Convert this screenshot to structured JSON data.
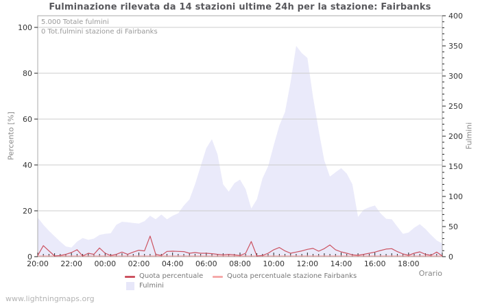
{
  "title": "Fulminazione rilevata da 14 stazioni ultime 24h per la stazione: Fairbanks",
  "annotations": {
    "total": "5.000 Totale fulmini",
    "station_total": "0 Tot.fulmini stazione di Fairbanks"
  },
  "watermark": "www.lightningmaps.org",
  "axes": {
    "left_title": "Percento  [%]",
    "right_title": "Fulmini",
    "x_title": "Orario",
    "left_ticks": [
      0,
      20,
      40,
      60,
      80,
      100
    ],
    "right_ticks": [
      0,
      50,
      100,
      150,
      200,
      250,
      300,
      350,
      400
    ],
    "x_ticks": [
      "20:00",
      "22:00",
      "00:00",
      "02:00",
      "04:00",
      "06:00",
      "08:00",
      "10:00",
      "12:00",
      "14:00",
      "16:00",
      "18:00"
    ],
    "left_range": [
      0,
      100
    ],
    "right_range": [
      0,
      400
    ],
    "grid": "horizontal"
  },
  "legend": [
    {
      "label": "Quota percentuale",
      "type": "line",
      "color": "#cc5260"
    },
    {
      "label": "Quota percentuale stazione Fairbanks",
      "type": "line",
      "color": "#f5a9a9"
    },
    {
      "label": "Fulmini",
      "type": "area",
      "color": "#e7e7f9"
    }
  ],
  "colors": {
    "area_fill": "#eaeafa",
    "line_percent": "#cc5260",
    "line_station": "#f5a9a9",
    "grid": "#cccccc",
    "frame": "#aaaaaa",
    "tick": "#222222",
    "tick_text": "#333333",
    "title_text": "#58585c",
    "axis_title_text": "#888888",
    "annotation_text": "#999999",
    "watermark_text": "#b3b3b3",
    "legend_text": "#777777"
  },
  "chart_data": {
    "type": "area",
    "title": "Fulminazione rilevata da 14 stazioni ultime 24h per la stazione: Fairbanks",
    "xlabel": "Orario",
    "ylabel_left": "Percento  [%]",
    "ylabel_right": "Fulmini",
    "x_start": "20:00",
    "hours_span": 24,
    "interval_minutes": 20,
    "ylim_left": [
      0,
      100
    ],
    "ylim_right": [
      0,
      400
    ],
    "series": [
      {
        "name": "Fulmini",
        "type": "area",
        "axis": "right",
        "color": "#eaeafa",
        "values": [
          65,
          53,
          43,
          34,
          25,
          17,
          15,
          25,
          31,
          28,
          30,
          36,
          38,
          39,
          53,
          58,
          57,
          56,
          55,
          59,
          68,
          62,
          70,
          62,
          68,
          72,
          85,
          95,
          120,
          150,
          180,
          195,
          170,
          120,
          108,
          122,
          128,
          112,
          80,
          95,
          130,
          150,
          185,
          218,
          240,
          290,
          350,
          338,
          330,
          265,
          210,
          160,
          133,
          140,
          147,
          138,
          120,
          66,
          78,
          82,
          85,
          72,
          63,
          62,
          50,
          38,
          40,
          48,
          54,
          46,
          36,
          27,
          22
        ]
      },
      {
        "name": "Quota percentuale",
        "type": "line",
        "axis": "left",
        "color": "#cc5260",
        "values": [
          0.5,
          4.8,
          2.5,
          0.3,
          0.5,
          1.0,
          1.8,
          3.0,
          0.3,
          1.5,
          1.0,
          3.8,
          1.5,
          0.5,
          1.0,
          2.0,
          1.0,
          2.0,
          2.8,
          2.5,
          9.0,
          1.0,
          0.5,
          2.3,
          2.4,
          2.3,
          2.2,
          1.5,
          1.8,
          1.5,
          1.5,
          1.3,
          1.0,
          0.8,
          1.0,
          0.8,
          0.5,
          1.5,
          6.6,
          0.3,
          0.5,
          1.5,
          3.0,
          4.0,
          2.5,
          1.5,
          2.0,
          2.5,
          3.2,
          3.6,
          2.4,
          3.5,
          5.1,
          3.0,
          2.1,
          1.5,
          0.8,
          0.6,
          1.0,
          1.5,
          2.0,
          2.7,
          3.3,
          3.5,
          2.2,
          1.2,
          0.6,
          1.5,
          2.1,
          1.0,
          0.6,
          2.0,
          0.3
        ]
      },
      {
        "name": "Quota percentuale stazione Fairbanks",
        "type": "line",
        "axis": "left",
        "color": "#f5a9a9",
        "values": [
          0,
          0,
          0,
          0,
          0,
          0,
          0,
          0,
          0,
          0,
          0,
          0,
          0,
          0,
          0,
          0,
          0,
          0,
          0,
          0,
          0,
          0,
          0,
          0,
          0,
          0,
          0,
          0,
          0,
          0,
          0,
          0,
          0,
          0,
          0,
          0,
          0,
          0,
          0,
          0,
          0,
          0,
          0,
          0,
          0,
          0,
          0,
          0,
          0,
          0,
          0,
          0,
          0,
          0,
          0,
          0,
          0,
          0,
          0,
          0,
          0,
          0,
          0,
          0,
          0,
          0,
          0,
          0,
          0,
          0,
          0,
          0,
          0
        ]
      }
    ]
  }
}
